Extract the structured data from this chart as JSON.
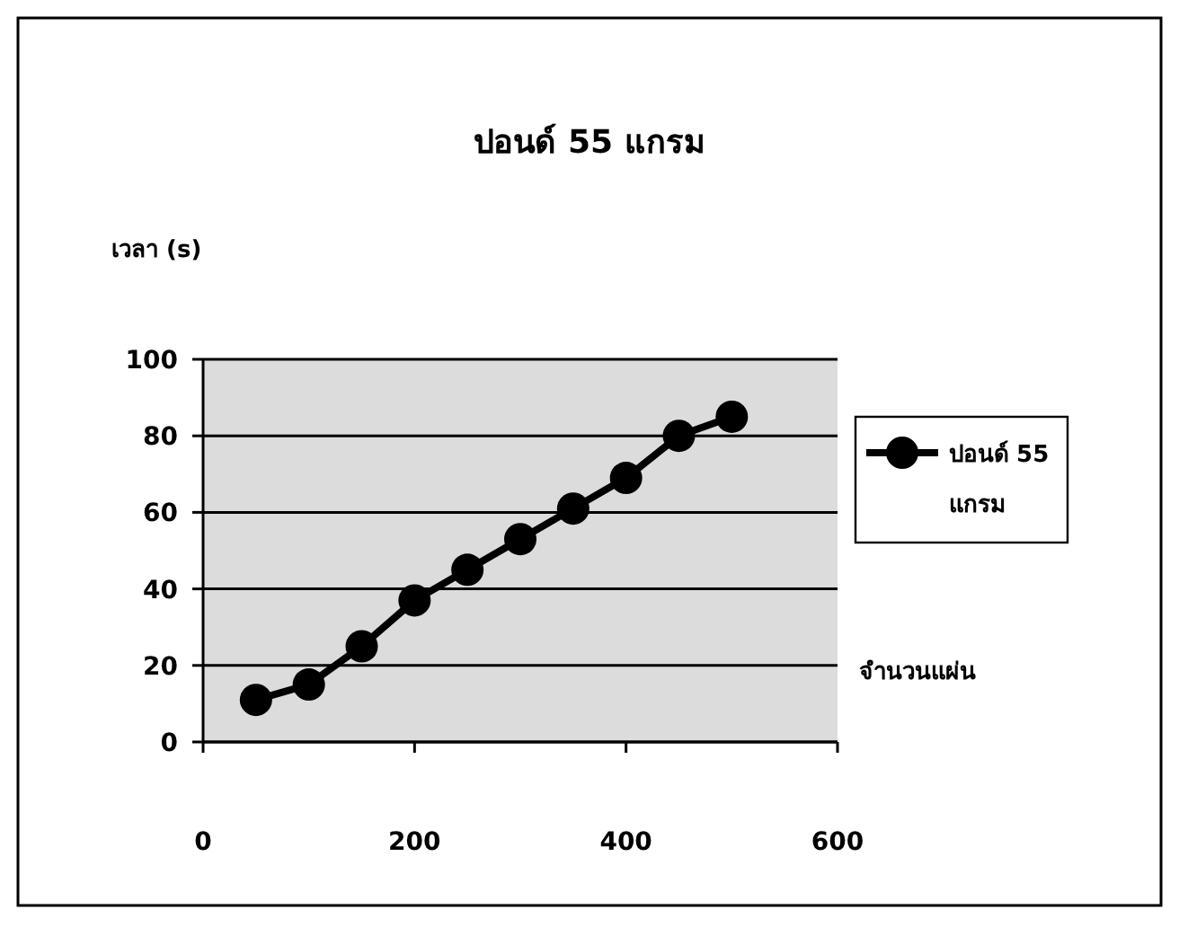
{
  "chart_data": {
    "type": "line",
    "title": "ปอนด์ 55 แกรม",
    "ylabel": "เวลา (s)",
    "xlabel": "จำนวนแผ่น",
    "x": [
      50,
      100,
      150,
      200,
      250,
      300,
      350,
      400,
      450,
      500
    ],
    "series": [
      {
        "name": "ปอนด์ 55 แกรม",
        "color": "#000000",
        "values": [
          11,
          15,
          25,
          37,
          45,
          53,
          61,
          69,
          80,
          85
        ]
      }
    ],
    "xlim": [
      0,
      600
    ],
    "xticks": [
      0,
      200,
      400,
      600
    ],
    "ylim": [
      0,
      100
    ],
    "yticks": [
      0,
      20,
      40,
      60,
      80,
      100
    ],
    "grid": "y",
    "legend": "right",
    "marker": "circle",
    "line_style": "solid"
  }
}
